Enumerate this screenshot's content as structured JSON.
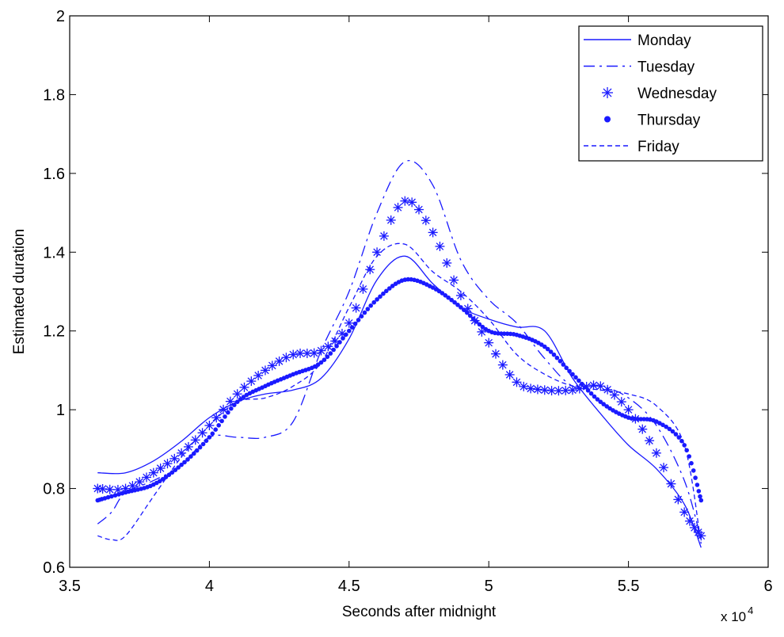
{
  "chart_data": {
    "type": "line",
    "title": "",
    "xlabel": "Seconds after midnight",
    "ylabel": "Estimated duration",
    "x_multiplier_label": "x 10",
    "x_multiplier_exponent": "4",
    "xlim": [
      3.5,
      6
    ],
    "ylim": [
      0.6,
      2
    ],
    "x_ticks": [
      "3.5",
      "4",
      "4.5",
      "5",
      "5.5",
      "6"
    ],
    "y_ticks": [
      "0.6",
      "0.8",
      "1",
      "1.2",
      "1.4",
      "1.6",
      "1.8",
      "2"
    ],
    "grid": false,
    "legend_position": "top-right",
    "series_color": "#1a1aff",
    "series": [
      {
        "name": "Monday",
        "style": "solid",
        "x": [
          3.6,
          3.7,
          3.8,
          3.9,
          4.0,
          4.1,
          4.2,
          4.3,
          4.4,
          4.5,
          4.6,
          4.7,
          4.8,
          4.9,
          5.0,
          5.1,
          5.2,
          5.3,
          5.4,
          5.5,
          5.6,
          5.7,
          5.76
        ],
        "y": [
          0.84,
          0.84,
          0.87,
          0.92,
          0.98,
          1.02,
          1.04,
          1.05,
          1.08,
          1.18,
          1.33,
          1.39,
          1.32,
          1.26,
          1.23,
          1.21,
          1.2,
          1.08,
          0.99,
          0.91,
          0.85,
          0.76,
          0.65
        ]
      },
      {
        "name": "Tuesday",
        "style": "dashdot",
        "x": [
          3.6,
          3.65,
          3.7,
          3.8,
          3.9,
          4.0,
          4.1,
          4.2,
          4.3,
          4.4,
          4.5,
          4.6,
          4.7,
          4.8,
          4.9,
          5.0,
          5.1,
          5.2,
          5.3,
          5.4,
          5.5,
          5.6,
          5.7,
          5.76
        ],
        "y": [
          0.71,
          0.74,
          0.79,
          0.82,
          0.86,
          0.93,
          0.93,
          0.93,
          0.97,
          1.15,
          1.3,
          1.5,
          1.63,
          1.57,
          1.38,
          1.28,
          1.22,
          1.13,
          1.06,
          1.06,
          1.03,
          0.96,
          0.82,
          0.67
        ]
      },
      {
        "name": "Wednesday",
        "style": "marker-star",
        "x": [
          3.6,
          3.7,
          3.8,
          3.9,
          4.0,
          4.1,
          4.2,
          4.3,
          4.4,
          4.5,
          4.6,
          4.7,
          4.8,
          4.9,
          5.0,
          5.1,
          5.2,
          5.3,
          5.4,
          5.5,
          5.6,
          5.7,
          5.76
        ],
        "y": [
          0.8,
          0.8,
          0.84,
          0.89,
          0.96,
          1.04,
          1.1,
          1.14,
          1.15,
          1.22,
          1.4,
          1.53,
          1.45,
          1.29,
          1.17,
          1.07,
          1.05,
          1.05,
          1.06,
          1.0,
          0.89,
          0.74,
          0.68
        ]
      },
      {
        "name": "Thursday",
        "style": "marker-dot",
        "x": [
          3.6,
          3.7,
          3.8,
          3.9,
          4.0,
          4.1,
          4.2,
          4.3,
          4.4,
          4.5,
          4.6,
          4.7,
          4.8,
          4.9,
          5.0,
          5.1,
          5.2,
          5.3,
          5.4,
          5.5,
          5.6,
          5.7,
          5.76
        ],
        "y": [
          0.77,
          0.79,
          0.81,
          0.86,
          0.93,
          1.02,
          1.06,
          1.09,
          1.12,
          1.2,
          1.28,
          1.33,
          1.31,
          1.26,
          1.2,
          1.19,
          1.16,
          1.09,
          1.02,
          0.98,
          0.97,
          0.91,
          0.77
        ]
      },
      {
        "name": "Friday",
        "style": "dashed",
        "x": [
          3.6,
          3.65,
          3.7,
          3.8,
          3.9,
          4.0,
          4.1,
          4.2,
          4.3,
          4.4,
          4.5,
          4.6,
          4.7,
          4.8,
          4.9,
          5.0,
          5.1,
          5.2,
          5.3,
          5.4,
          5.5,
          5.6,
          5.7,
          5.76
        ],
        "y": [
          0.68,
          0.67,
          0.68,
          0.78,
          0.88,
          0.96,
          1.02,
          1.03,
          1.06,
          1.12,
          1.26,
          1.39,
          1.42,
          1.35,
          1.3,
          1.23,
          1.14,
          1.09,
          1.06,
          1.05,
          1.04,
          1.01,
          0.91,
          0.66
        ]
      }
    ]
  }
}
